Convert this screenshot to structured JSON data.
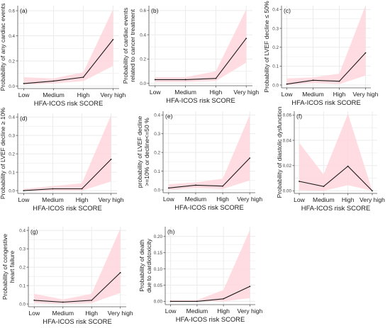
{
  "chart_data": [
    {
      "panel_label": "(a)",
      "type": "line",
      "categories": [
        "Low",
        "Medium",
        "High",
        "Very high"
      ],
      "y": [
        0.02,
        0.04,
        0.07,
        0.37
      ],
      "lower": [
        0.01,
        0.02,
        0.04,
        0.16
      ],
      "upper": [
        0.07,
        0.06,
        0.11,
        0.61
      ],
      "ylim": [
        -0.02,
        0.64
      ],
      "yticks": [
        "0.0",
        "0.2",
        "0.4",
        "0.6"
      ],
      "ytick_values": [
        0,
        0.2,
        0.4,
        0.6
      ],
      "ylabel_lines": [
        "Probability of any cardiac events"
      ],
      "xlabel": "HFA-ICOS risk SCORE",
      "grid": true
    },
    {
      "panel_label": "(b)",
      "type": "line",
      "categories": [
        "Low",
        "Medium",
        "High",
        "Very high"
      ],
      "y": [
        0.03,
        0.03,
        0.04,
        0.37
      ],
      "lower": [
        0.01,
        0.01,
        0.02,
        0.17
      ],
      "upper": [
        0.05,
        0.05,
        0.1,
        0.61
      ],
      "ylim": [
        -0.02,
        0.64
      ],
      "yticks": [
        "0.0",
        "0.2",
        "0.4",
        "0.6"
      ],
      "ytick_values": [
        0,
        0.2,
        0.4,
        0.6
      ],
      "ylabel_lines": [
        "Probability of cardiac events",
        "related to cancer treatment"
      ],
      "xlabel": "HFA-ICOS risk SCORE",
      "grid": true
    },
    {
      "panel_label": "(c)",
      "type": "line",
      "categories": [
        "Low",
        "Medium",
        "High",
        "Very high"
      ],
      "y": [
        0.005,
        0.025,
        0.02,
        0.17
      ],
      "lower": [
        0.0,
        0.01,
        0.005,
        0.05
      ],
      "upper": [
        0.035,
        0.04,
        0.06,
        0.42
      ],
      "ylim": [
        -0.015,
        0.42
      ],
      "yticks": [
        "0.0",
        "0.1",
        "0.2",
        "0.3",
        "0.4"
      ],
      "ytick_values": [
        0,
        0.1,
        0.2,
        0.3,
        0.4
      ],
      "ylabel_lines": [
        "Probability of LVEF decline ≤ 50%"
      ],
      "xlabel": "HFA-ICOS risk SCORE",
      "grid": true
    },
    {
      "panel_label": "(d)",
      "type": "line",
      "categories": [
        "Low",
        "Medium",
        "High",
        "Very high"
      ],
      "y": [
        0.0,
        0.01,
        0.01,
        0.17
      ],
      "lower": [
        0.0,
        0.0,
        0.0,
        0.05
      ],
      "upper": [
        0.01,
        0.025,
        0.04,
        0.41
      ],
      "ylim": [
        -0.015,
        0.42
      ],
      "yticks": [
        "0.0",
        "0.1",
        "0.2",
        "0.3",
        "0.4"
      ],
      "ytick_values": [
        0,
        0.1,
        0.2,
        0.3,
        0.4
      ],
      "ylabel_lines": [
        "Probability of LVEF decline ≥ 10%"
      ],
      "xlabel": "HFA-ICOS risk SCORE",
      "grid": true
    },
    {
      "panel_label": "(e)",
      "type": "line",
      "categories": [
        "Low",
        "Medium",
        "High",
        "Very high"
      ],
      "y": [
        0.01,
        0.025,
        0.02,
        0.17
      ],
      "lower": [
        0.0,
        0.01,
        0.005,
        0.05
      ],
      "upper": [
        0.03,
        0.04,
        0.06,
        0.4
      ],
      "ylim": [
        -0.015,
        0.42
      ],
      "yticks": [
        "0.0",
        "0.1",
        "0.2",
        "0.3",
        "0.4"
      ],
      "ytick_values": [
        0,
        0.1,
        0.2,
        0.3,
        0.4
      ],
      "ylabel_lines": [
        "probability of LVEF decline",
        ">=10% or decline<=50 %"
      ],
      "xlabel": "HFA-ICOS risk SCORE",
      "grid": true
    },
    {
      "panel_label": "(f)",
      "type": "line",
      "categories": [
        "Low",
        "Medium",
        "High",
        "Very high"
      ],
      "y": [
        0.0075,
        0.0035,
        0.0195,
        0.0
      ],
      "lower": [
        0.0005,
        0.0,
        0.0045,
        0.0
      ],
      "upper": [
        0.038,
        0.013,
        0.061,
        0.0
      ],
      "ylim": [
        -0.002,
        0.063
      ],
      "yticks": [
        "0.00",
        "0.02",
        "0.04",
        "0.06"
      ],
      "ytick_values": [
        0,
        0.02,
        0.04,
        0.06
      ],
      "ylabel_lines": [
        "Probability of diastolic dysfunction"
      ],
      "xlabel": "HFA-ICOS risk SCORE",
      "grid": true
    },
    {
      "panel_label": "(g)",
      "type": "line",
      "categories": [
        "Low",
        "Medium",
        "High",
        "Very high"
      ],
      "y": [
        0.02,
        0.01,
        0.02,
        0.17
      ],
      "lower": [
        0.005,
        0.0,
        0.005,
        0.06
      ],
      "upper": [
        0.055,
        0.025,
        0.055,
        0.41
      ],
      "ylim": [
        -0.015,
        0.42
      ],
      "yticks": [
        "0.0",
        "0.1",
        "0.2",
        "0.3",
        "0.4"
      ],
      "ytick_values": [
        0,
        0.1,
        0.2,
        0.3,
        0.4
      ],
      "ylabel_lines": [
        "Probability of congestive",
        "heart failure"
      ],
      "xlabel": "HFA-ICOS risk SCORE",
      "grid": true
    },
    {
      "panel_label": "(h)",
      "type": "line",
      "categories": [
        "Low",
        "Medium",
        "High",
        "Very high"
      ],
      "y": [
        0.0,
        0.0,
        0.008,
        0.046
      ],
      "lower": [
        0.0,
        0.0,
        0.0,
        0.01
      ],
      "upper": [
        0.004,
        0.004,
        0.035,
        0.22
      ],
      "ylim": [
        -0.01,
        0.23
      ],
      "yticks": [
        "0.00",
        "0.05",
        "0.10",
        "0.15",
        "0.20"
      ],
      "ytick_values": [
        0,
        0.05,
        0.1,
        0.15,
        0.2
      ],
      "ylabel_lines": [
        "Probability of death",
        "due to cardiotoxicity"
      ],
      "xlabel": "HFA-ICOS risk SCORE",
      "grid": true
    }
  ],
  "colors": {
    "band": "#ffd6dc",
    "line": "#1a1a1a",
    "grid": "#ebebeb",
    "axis": "#555555",
    "text": "#1a1a1a"
  }
}
